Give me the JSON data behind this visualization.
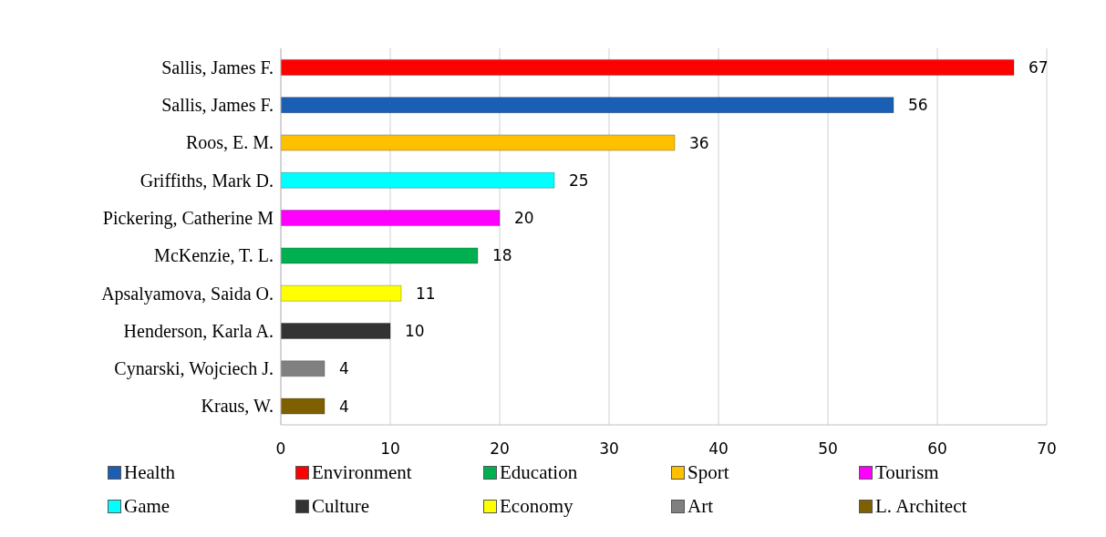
{
  "chart_data": {
    "type": "bar",
    "orientation": "horizontal",
    "stacked": true,
    "categories": [
      "Sallis, James F.",
      "Sallis, James F.",
      "Roos, E. M.",
      "Griffiths, Mark D.",
      "Pickering, Catherine M",
      "McKenzie, T. L.",
      "Apsalyamova, Saida O.",
      "Henderson, Karla A.",
      "Cynarski, Wojciech J.",
      "Kraus, W."
    ],
    "series": [
      {
        "name": "Health",
        "color": "#1a5fb4",
        "values": [
          null,
          56,
          null,
          null,
          null,
          null,
          null,
          null,
          null,
          null
        ]
      },
      {
        "name": "Environment",
        "color": "#ff0000",
        "values": [
          67,
          null,
          null,
          null,
          null,
          null,
          null,
          null,
          null,
          null
        ]
      },
      {
        "name": "Education",
        "color": "#00b050",
        "values": [
          null,
          null,
          null,
          null,
          null,
          18,
          null,
          null,
          null,
          null
        ]
      },
      {
        "name": "Sport",
        "color": "#ffc000",
        "values": [
          null,
          null,
          36,
          null,
          null,
          null,
          null,
          null,
          null,
          null
        ]
      },
      {
        "name": "Tourism",
        "color": "#ff00ff",
        "values": [
          null,
          null,
          null,
          null,
          20,
          null,
          null,
          null,
          null,
          null
        ]
      },
      {
        "name": "Game",
        "color": "#00ffff",
        "values": [
          null,
          null,
          null,
          25,
          null,
          null,
          null,
          null,
          null,
          null
        ]
      },
      {
        "name": "Culture",
        "color": "#333333",
        "values": [
          null,
          null,
          null,
          null,
          null,
          null,
          null,
          10,
          null,
          null
        ]
      },
      {
        "name": "Economy",
        "color": "#ffff00",
        "values": [
          null,
          null,
          null,
          null,
          null,
          null,
          11,
          null,
          null,
          null
        ]
      },
      {
        "name": "Art",
        "color": "#808080",
        "values": [
          null,
          null,
          null,
          null,
          null,
          null,
          null,
          null,
          4,
          null
        ]
      },
      {
        "name": "L. Architect",
        "color": "#7f6000",
        "values": [
          null,
          null,
          null,
          null,
          null,
          null,
          null,
          null,
          null,
          4
        ]
      }
    ],
    "xlim": [
      0,
      70
    ],
    "xticks": [
      0,
      10,
      20,
      30,
      40,
      50,
      60,
      70
    ],
    "grid": "x",
    "legend": "bottom",
    "data_labels": true
  }
}
